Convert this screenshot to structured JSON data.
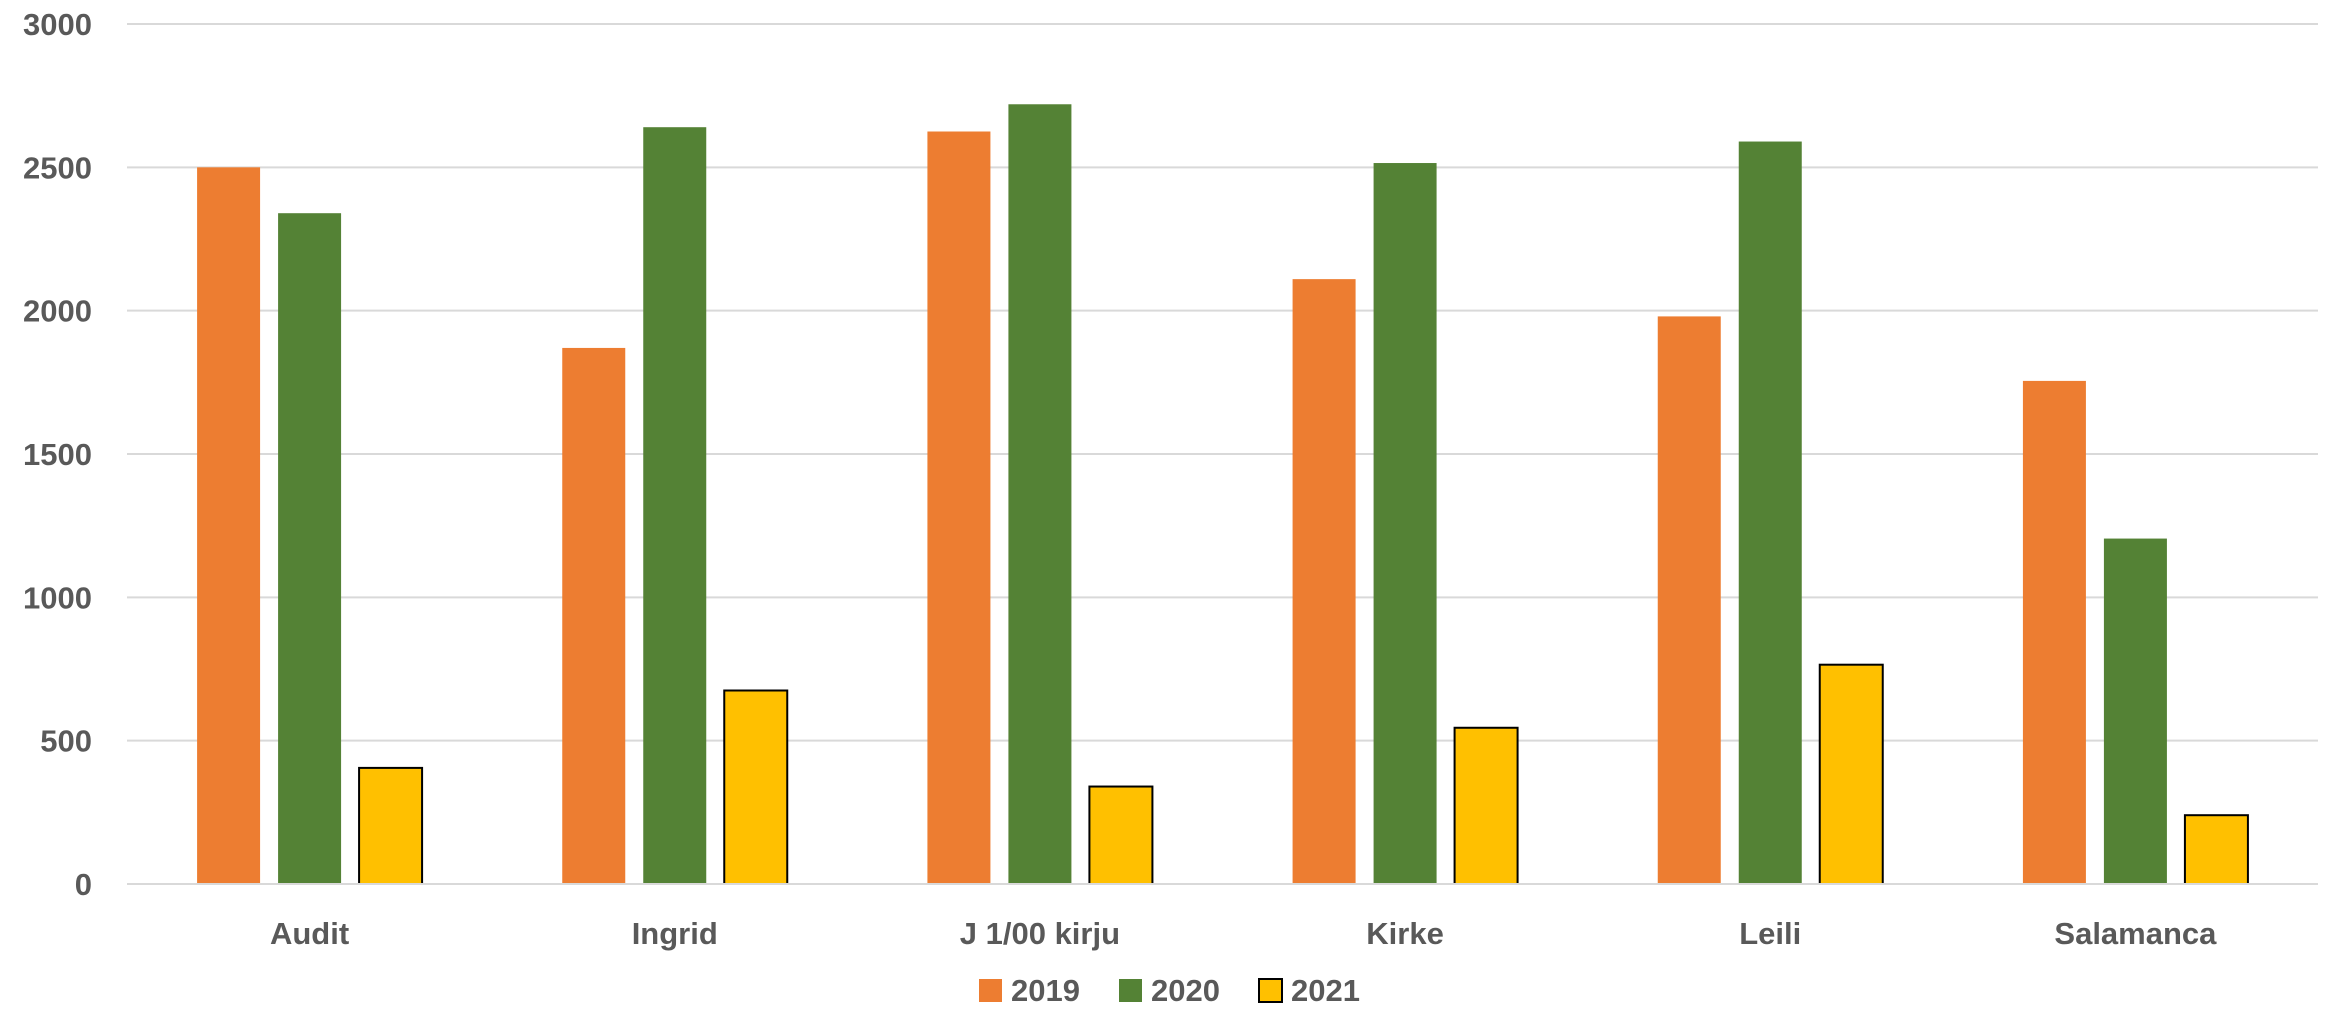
{
  "chart_data": {
    "type": "bar",
    "title": "",
    "xlabel": "",
    "ylabel": "",
    "categories": [
      "Audit",
      "Ingrid",
      "J 1/00 kirju",
      "Kirke",
      "Leili",
      "Salamanca"
    ],
    "series": [
      {
        "name": "2019",
        "color": "#ED7D31",
        "outline": false,
        "values": [
          2500,
          1870,
          2625,
          2110,
          1980,
          1755
        ]
      },
      {
        "name": "2020",
        "color": "#548235",
        "outline": false,
        "values": [
          2340,
          2640,
          2720,
          2515,
          2590,
          1205
        ]
      },
      {
        "name": "2021",
        "color": "#FFC000",
        "outline": true,
        "values": [
          405,
          675,
          340,
          545,
          765,
          240
        ]
      }
    ],
    "ylim": [
      0,
      3000
    ],
    "yticks": [
      0,
      500,
      1000,
      1500,
      2000,
      2500,
      3000
    ],
    "grid": true,
    "legend_position": "bottom"
  }
}
